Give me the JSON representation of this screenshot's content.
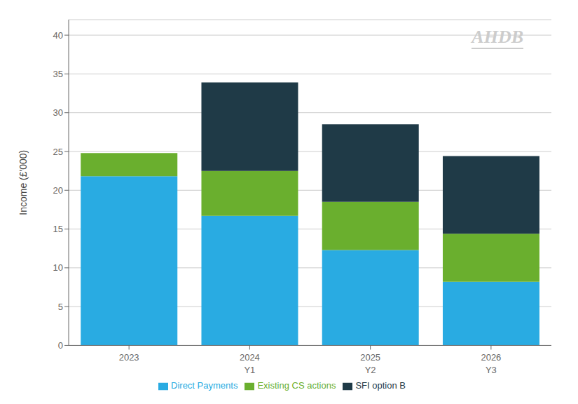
{
  "chart_data": {
    "type": "bar",
    "stacked": true,
    "grid": true,
    "legend": "bottom",
    "categories": [
      "2023",
      "2024",
      "2025",
      "2026"
    ],
    "category_sublabels": [
      null,
      "Y1",
      "Y2",
      "Y3"
    ],
    "ylabel": "Income (£'000)",
    "ylim": [
      0,
      42
    ],
    "yticks": [
      0,
      5,
      10,
      15,
      20,
      25,
      30,
      35,
      40
    ],
    "annotations": [
      "AHDB"
    ],
    "series": [
      {
        "name": "Direct Payments",
        "color": "#29ABE2",
        "values": [
          21.8,
          16.7,
          12.3,
          8.2
        ]
      },
      {
        "name": "Existing CS actions",
        "color": "#6AAF2E",
        "values": [
          3.0,
          5.8,
          6.2,
          6.2
        ]
      },
      {
        "name": "SFI option B",
        "color": "#1F3A47",
        "values": [
          0.0,
          11.4,
          10.0,
          10.0
        ]
      }
    ]
  }
}
